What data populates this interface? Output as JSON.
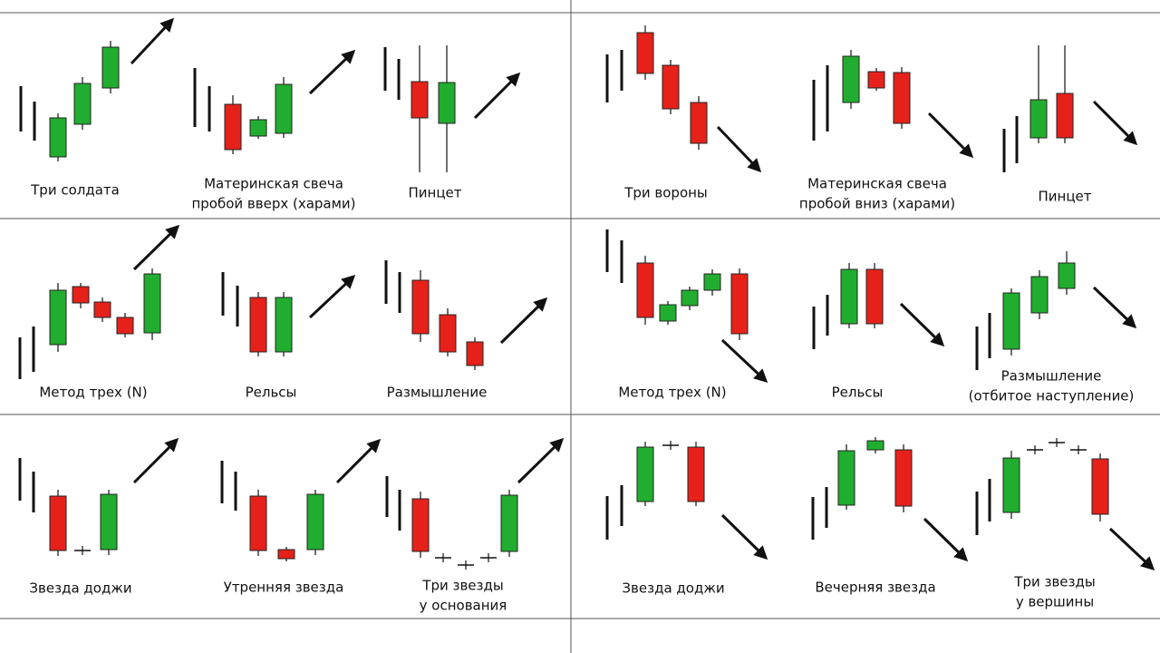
{
  "patterns": [
    {
      "label": [
        "Три солдата"
      ]
    },
    {
      "label": [
        "Материнская свеча",
        "пробой вверх (харами)"
      ]
    },
    {
      "label": [
        "Пинцет"
      ]
    },
    {
      "label": [
        "Три вороны"
      ]
    },
    {
      "label": [
        "Материнская свеча",
        "пробой вниз (харами)"
      ]
    },
    {
      "label": [
        "Пинцет"
      ]
    },
    {
      "label": [
        "Метод трех (N)"
      ]
    },
    {
      "label": [
        "Рельсы"
      ]
    },
    {
      "label": [
        "Размышление"
      ]
    },
    {
      "label": [
        "Метод трех (N)"
      ]
    },
    {
      "label": [
        "Рельсы"
      ]
    },
    {
      "label": [
        "Размышление",
        "(отбитое наступление)"
      ]
    },
    {
      "label": [
        "Звезда доджи"
      ]
    },
    {
      "label": [
        "Утренняя звезда"
      ]
    },
    {
      "label": [
        "Три звезды",
        "у основания"
      ]
    },
    {
      "label": [
        "Звезда доджи"
      ]
    },
    {
      "label": [
        "Вечерняя звезда"
      ]
    },
    {
      "label": [
        "Три звезды",
        "у вершины"
      ]
    }
  ]
}
